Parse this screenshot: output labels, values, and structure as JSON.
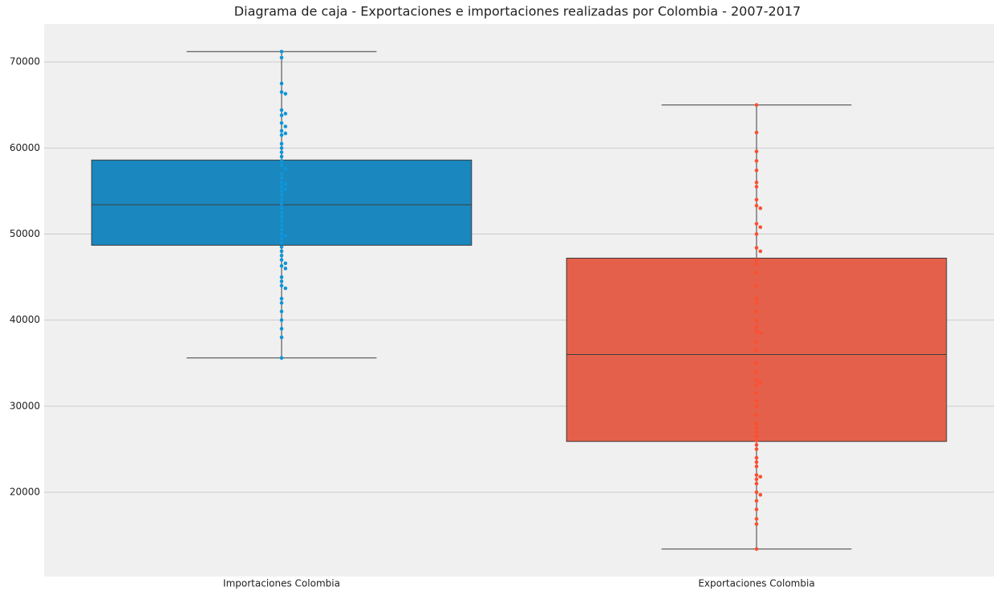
{
  "chart_data": {
    "type": "box",
    "title": "Diagrama de caja - Exportaciones e importaciones realizadas por Colombia - 2007-2017",
    "categories": [
      "Importaciones Colombia",
      "Exportaciones Colombia"
    ],
    "ylim": [
      10200,
      74400
    ],
    "yticks": [
      20000,
      30000,
      40000,
      50000,
      60000,
      70000
    ],
    "grid": true,
    "boxes": [
      {
        "color": "#1a87bf",
        "point_color": "#0f95d8",
        "whislo": 35600,
        "q1": 48700,
        "med": 53400,
        "q3": 58600,
        "whishi": 71200,
        "points": [
          71200,
          70500,
          67500,
          66500,
          66300,
          64400,
          64000,
          63800,
          62900,
          62500,
          62000,
          61700,
          61500,
          60500,
          60000,
          59500,
          59000,
          58500,
          58000,
          57600,
          57000,
          56500,
          56000,
          55800,
          55500,
          55200,
          55000,
          54500,
          54000,
          53500,
          53000,
          52500,
          52000,
          51500,
          51000,
          50500,
          50000,
          49800,
          49500,
          49000,
          48500,
          48000,
          47500,
          47000,
          46600,
          46300,
          46000,
          45000,
          44500,
          44000,
          43700,
          42500,
          42000,
          41000,
          40000,
          39000,
          38000,
          35600
        ]
      },
      {
        "color": "#e5604a",
        "point_color": "#fc4f30",
        "whislo": 13400,
        "q1": 25900,
        "med": 36000,
        "q3": 47200,
        "whishi": 65000,
        "points": [
          65000,
          61800,
          59600,
          58500,
          57400,
          56000,
          55500,
          54000,
          53300,
          53000,
          51200,
          50800,
          50000,
          48400,
          48000,
          47000,
          46500,
          45500,
          44000,
          42500,
          42000,
          41000,
          40000,
          39200,
          38700,
          38500,
          37500,
          36500,
          35000,
          34000,
          33000,
          32700,
          32400,
          31500,
          30600,
          30000,
          29000,
          28000,
          27500,
          27000,
          26500,
          26000,
          25500,
          25000,
          24000,
          23500,
          23000,
          22000,
          21800,
          21500,
          21000,
          20000,
          19700,
          19000,
          18000,
          16900,
          16300,
          13400
        ]
      }
    ]
  }
}
